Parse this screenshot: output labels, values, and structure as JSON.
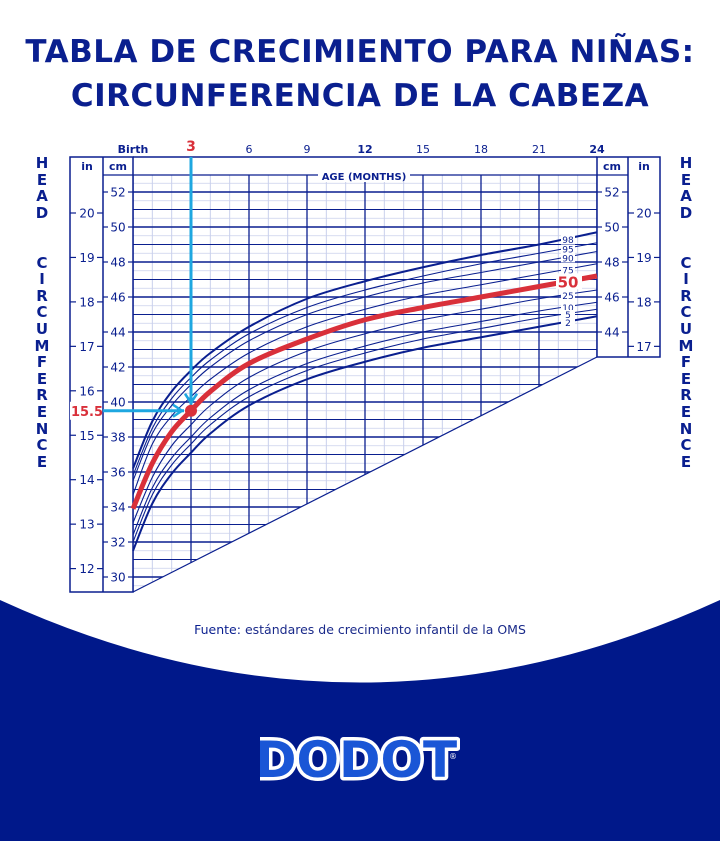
{
  "title": {
    "line1": "TABLA DE CRECIMIENTO PARA NIÑAS:",
    "line2": "CIRCUNFERENCIA DE LA CABEZA"
  },
  "side_label": {
    "word1": "HEAD",
    "word2": "CIRCUMFERENCE"
  },
  "source": {
    "prefix": "Fuente:",
    "text": " estándares de crecimiento infantil de la OMS"
  },
  "brand": {
    "name": "DODOT",
    "registered": "®"
  },
  "colors": {
    "navy": "#0a1f8f",
    "footer_bg": "#00188a",
    "highlight_red": "#d9303a",
    "arrow_cyan": "#1ea7e0",
    "grid_minor": "#c9d0ec"
  },
  "chart_data": {
    "type": "line",
    "title": "Head circumference-for-age, girls (birth to 24 months)",
    "xlabel": "AGE (MONTHS)",
    "ylabel": "HEAD CIRCUMFERENCE",
    "unit_left_outer": "in",
    "unit_left_inner": "cm",
    "unit_right_inner": "cm",
    "unit_right_outer": "in",
    "x_ticks": [
      {
        "value": 0,
        "label": "Birth"
      },
      {
        "value": 3,
        "label": "3",
        "highlight": true
      },
      {
        "value": 6,
        "label": "6"
      },
      {
        "value": 9,
        "label": "9"
      },
      {
        "value": 12,
        "label": "12",
        "bold": true
      },
      {
        "value": 15,
        "label": "15"
      },
      {
        "value": 18,
        "label": "18"
      },
      {
        "value": 21,
        "label": "21"
      },
      {
        "value": 24,
        "label": "24",
        "bold": true
      }
    ],
    "xlim": [
      0,
      24
    ],
    "cm_ticks_left": [
      30,
      32,
      34,
      36,
      38,
      40,
      42,
      44,
      46,
      48,
      50,
      52
    ],
    "in_ticks_left": [
      12,
      13,
      14,
      15,
      16,
      17,
      18,
      19,
      20
    ],
    "cm_ticks_right": [
      44,
      46,
      48,
      50,
      52
    ],
    "in_ticks_right": [
      17,
      18,
      19,
      20
    ],
    "ylim_cm": [
      29.1,
      53.0
    ],
    "grid": true,
    "x": [
      0,
      1,
      2,
      3,
      4,
      6,
      9,
      12,
      15,
      18,
      21,
      24
    ],
    "series": [
      {
        "name": "98",
        "values": [
          36.2,
          38.9,
          40.6,
          41.8,
          42.8,
          44.3,
          45.9,
          46.9,
          47.7,
          48.4,
          49.0,
          49.7
        ]
      },
      {
        "name": "95",
        "values": [
          35.8,
          38.5,
          40.2,
          41.4,
          42.4,
          43.9,
          45.4,
          46.4,
          47.2,
          47.9,
          48.5,
          49.1
        ]
      },
      {
        "name": "90",
        "values": [
          35.5,
          38.2,
          39.8,
          41.0,
          42.0,
          43.5,
          45.0,
          46.0,
          46.8,
          47.4,
          48.0,
          48.6
        ]
      },
      {
        "name": "75",
        "values": [
          34.7,
          37.6,
          39.2,
          40.3,
          41.3,
          42.8,
          44.3,
          45.3,
          46.1,
          46.7,
          47.3,
          47.9
        ]
      },
      {
        "name": "50",
        "values": [
          33.9,
          36.5,
          38.3,
          39.5,
          40.6,
          42.2,
          43.6,
          44.7,
          45.4,
          46.0,
          46.6,
          47.2
        ],
        "highlight": true
      },
      {
        "name": "25",
        "values": [
          33.1,
          35.7,
          37.5,
          38.7,
          39.8,
          41.4,
          42.9,
          43.9,
          44.7,
          45.3,
          45.9,
          46.4
        ]
      },
      {
        "name": "10",
        "values": [
          32.4,
          35.1,
          36.8,
          38.0,
          39.1,
          40.7,
          42.2,
          43.2,
          44.0,
          44.6,
          45.2,
          45.7
        ]
      },
      {
        "name": "5",
        "values": [
          32.0,
          34.7,
          36.4,
          37.6,
          38.7,
          40.3,
          41.8,
          42.8,
          43.6,
          44.2,
          44.8,
          45.3
        ]
      },
      {
        "name": "2",
        "values": [
          31.5,
          34.2,
          35.9,
          37.1,
          38.2,
          39.8,
          41.3,
          42.3,
          43.1,
          43.7,
          44.3,
          44.9
        ]
      }
    ],
    "annotations": [
      {
        "type": "point",
        "x": 3,
        "y_cm": 39.5,
        "y_in": 15.5,
        "label_in": "15.5",
        "label_month": "3"
      },
      {
        "type": "series_label",
        "series": "50",
        "text": "50"
      }
    ]
  }
}
